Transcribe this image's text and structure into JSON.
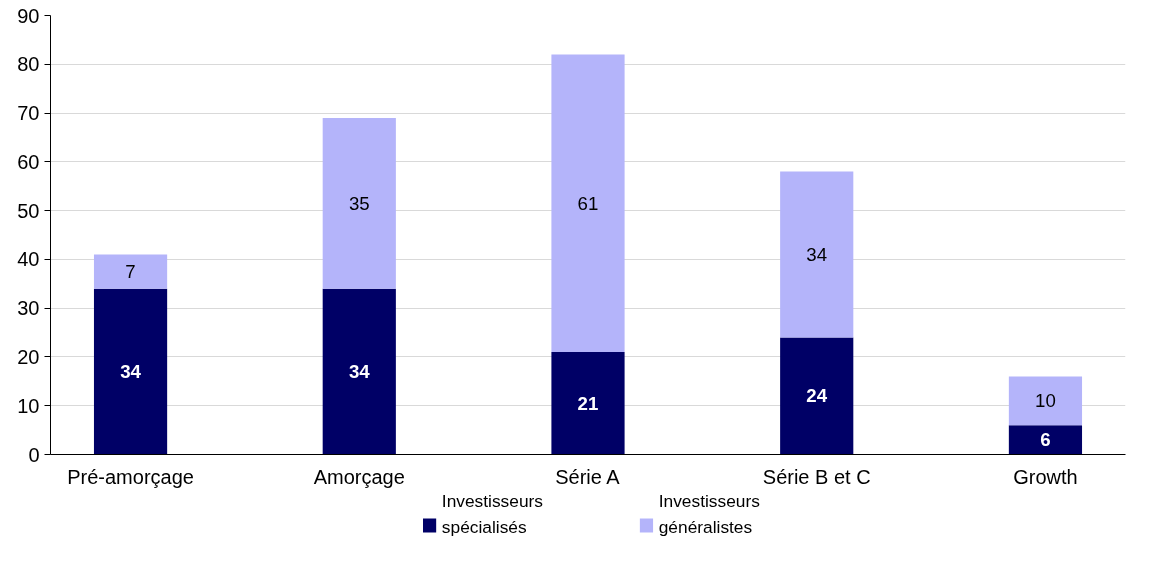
{
  "chart_data": {
    "type": "bar",
    "stacked": true,
    "categories": [
      "Pré-amorçage",
      "Amorçage",
      "Série A",
      "Série B et C",
      "Growth"
    ],
    "series": [
      {
        "name": "Investisseurs spécialisés",
        "color": "#000066",
        "values": [
          34,
          34,
          21,
          24,
          6
        ]
      },
      {
        "name": "Investisseurs généralistes",
        "color": "#b4b4fa",
        "values": [
          7,
          35,
          61,
          34,
          10
        ]
      }
    ],
    "ylim": [
      0,
      90
    ],
    "yticks": [
      0,
      10,
      20,
      30,
      40,
      50,
      60,
      70,
      80,
      90
    ],
    "grid": "y",
    "legend": "bottom",
    "data_labels": true
  }
}
